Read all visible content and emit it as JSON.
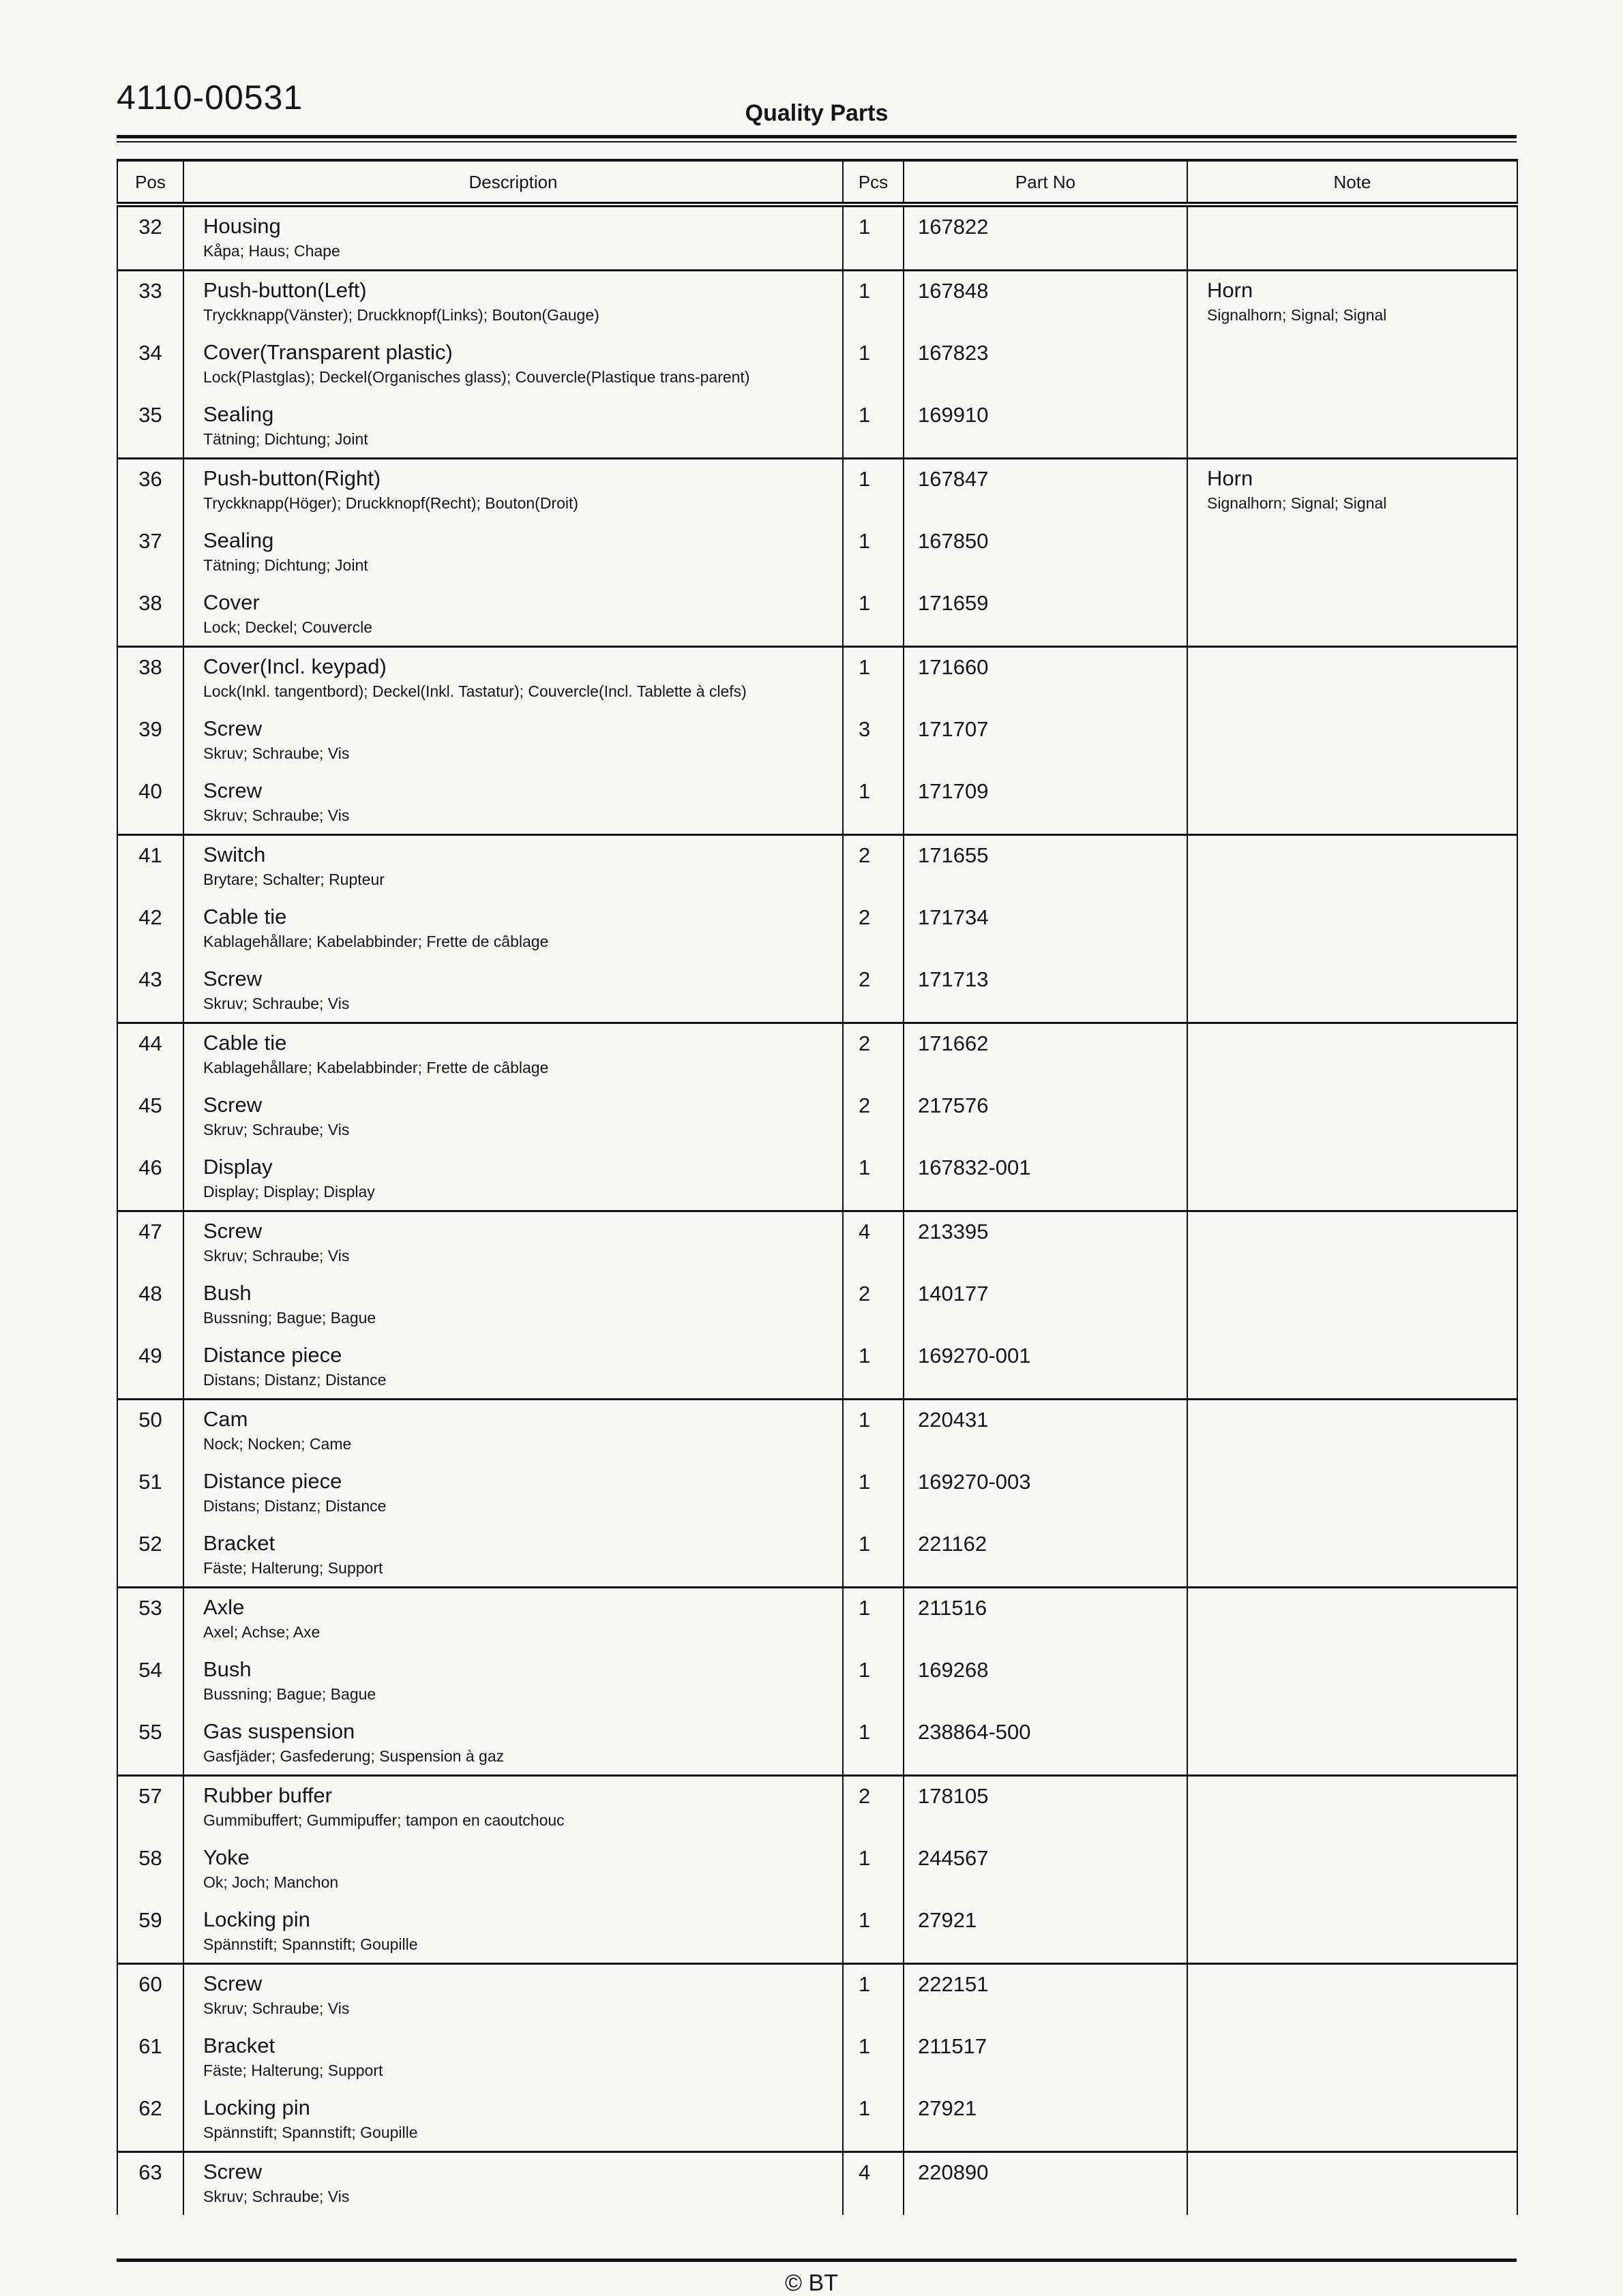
{
  "page": {
    "doc_number": "4110-00531",
    "title": "Quality Parts",
    "copyright": "© BT",
    "colors": {
      "ink": "#161616",
      "background": "#f7f7f5"
    }
  },
  "table": {
    "headers": {
      "pos": "Pos",
      "description": "Description",
      "pcs": "Pcs",
      "part_no": "Part No",
      "note": "Note"
    },
    "groups": [
      {
        "rows": [
          {
            "pos": "32",
            "desc": "Housing",
            "sub": "Kåpa; Haus; Chape",
            "pcs": "1",
            "part_no": "167822",
            "note": "",
            "note_sub": ""
          }
        ]
      },
      {
        "rows": [
          {
            "pos": "33",
            "desc": "Push-button(Left)",
            "sub": "Tryckknapp(Vänster); Druckknopf(Links); Bouton(Gauge)",
            "pcs": "1",
            "part_no": "167848",
            "note": "Horn",
            "note_sub": "Signalhorn; Signal; Signal"
          },
          {
            "pos": "34",
            "desc": "Cover(Transparent plastic)",
            "sub": "Lock(Plastglas); Deckel(Organisches glass); Couvercle(Plastique trans-parent)",
            "pcs": "1",
            "part_no": "167823",
            "note": "",
            "note_sub": ""
          },
          {
            "pos": "35",
            "desc": "Sealing",
            "sub": "Tätning; Dichtung; Joint",
            "pcs": "1",
            "part_no": "169910",
            "note": "",
            "note_sub": ""
          }
        ]
      },
      {
        "rows": [
          {
            "pos": "36",
            "desc": "Push-button(Right)",
            "sub": "Tryckknapp(Höger); Druckknopf(Recht); Bouton(Droit)",
            "pcs": "1",
            "part_no": "167847",
            "note": "Horn",
            "note_sub": "Signalhorn; Signal; Signal"
          },
          {
            "pos": "37",
            "desc": "Sealing",
            "sub": "Tätning; Dichtung; Joint",
            "pcs": "1",
            "part_no": "167850",
            "note": "",
            "note_sub": ""
          },
          {
            "pos": "38",
            "desc": "Cover",
            "sub": "Lock; Deckel; Couvercle",
            "pcs": "1",
            "part_no": "171659",
            "note": "",
            "note_sub": ""
          }
        ]
      },
      {
        "rows": [
          {
            "pos": "38",
            "desc": "Cover(Incl. keypad)",
            "sub": "Lock(Inkl. tangentbord); Deckel(Inkl. Tastatur); Couvercle(Incl. Tablette à clefs)",
            "pcs": "1",
            "part_no": "171660",
            "note": "",
            "note_sub": ""
          },
          {
            "pos": "39",
            "desc": "Screw",
            "sub": "Skruv; Schraube; Vis",
            "pcs": "3",
            "part_no": "171707",
            "note": "",
            "note_sub": ""
          },
          {
            "pos": "40",
            "desc": "Screw",
            "sub": "Skruv; Schraube; Vis",
            "pcs": "1",
            "part_no": "171709",
            "note": "",
            "note_sub": ""
          }
        ]
      },
      {
        "rows": [
          {
            "pos": "41",
            "desc": "Switch",
            "sub": "Brytare; Schalter; Rupteur",
            "pcs": "2",
            "part_no": "171655",
            "note": "",
            "note_sub": ""
          },
          {
            "pos": "42",
            "desc": "Cable tie",
            "sub": "Kablagehållare; Kabelabbinder; Frette de câblage",
            "pcs": "2",
            "part_no": "171734",
            "note": "",
            "note_sub": ""
          },
          {
            "pos": "43",
            "desc": "Screw",
            "sub": "Skruv; Schraube; Vis",
            "pcs": "2",
            "part_no": "171713",
            "note": "",
            "note_sub": ""
          }
        ]
      },
      {
        "rows": [
          {
            "pos": "44",
            "desc": "Cable tie",
            "sub": "Kablagehållare; Kabelabbinder; Frette de câblage",
            "pcs": "2",
            "part_no": "171662",
            "note": "",
            "note_sub": ""
          },
          {
            "pos": "45",
            "desc": "Screw",
            "sub": "Skruv; Schraube; Vis",
            "pcs": "2",
            "part_no": "217576",
            "note": "",
            "note_sub": ""
          },
          {
            "pos": "46",
            "desc": "Display",
            "sub": "Display; Display; Display",
            "pcs": "1",
            "part_no": "167832-001",
            "note": "",
            "note_sub": ""
          }
        ]
      },
      {
        "rows": [
          {
            "pos": "47",
            "desc": "Screw",
            "sub": "Skruv; Schraube; Vis",
            "pcs": "4",
            "part_no": "213395",
            "note": "",
            "note_sub": ""
          },
          {
            "pos": "48",
            "desc": "Bush",
            "sub": "Bussning; Bague; Bague",
            "pcs": "2",
            "part_no": "140177",
            "note": "",
            "note_sub": ""
          },
          {
            "pos": "49",
            "desc": "Distance piece",
            "sub": "Distans; Distanz; Distance",
            "pcs": "1",
            "part_no": "169270-001",
            "note": "",
            "note_sub": ""
          }
        ]
      },
      {
        "rows": [
          {
            "pos": "50",
            "desc": "Cam",
            "sub": "Nock; Nocken; Came",
            "pcs": "1",
            "part_no": "220431",
            "note": "",
            "note_sub": ""
          },
          {
            "pos": "51",
            "desc": "Distance piece",
            "sub": "Distans; Distanz; Distance",
            "pcs": "1",
            "part_no": "169270-003",
            "note": "",
            "note_sub": ""
          },
          {
            "pos": "52",
            "desc": "Bracket",
            "sub": "Fäste; Halterung; Support",
            "pcs": "1",
            "part_no": "221162",
            "note": "",
            "note_sub": ""
          }
        ]
      },
      {
        "rows": [
          {
            "pos": "53",
            "desc": "Axle",
            "sub": "Axel; Achse; Axe",
            "pcs": "1",
            "part_no": "211516",
            "note": "",
            "note_sub": ""
          },
          {
            "pos": "54",
            "desc": "Bush",
            "sub": "Bussning; Bague; Bague",
            "pcs": "1",
            "part_no": "169268",
            "note": "",
            "note_sub": ""
          },
          {
            "pos": "55",
            "desc": "Gas suspension",
            "sub": "Gasfjäder; Gasfederung; Suspension à gaz",
            "pcs": "1",
            "part_no": "238864-500",
            "note": "",
            "note_sub": ""
          }
        ]
      },
      {
        "rows": [
          {
            "pos": "57",
            "desc": "Rubber buffer",
            "sub": "Gummibuffert; Gummipuffer; tampon en caoutchouc",
            "pcs": "2",
            "part_no": "178105",
            "note": "",
            "note_sub": ""
          },
          {
            "pos": "58",
            "desc": "Yoke",
            "sub": "Ok; Joch; Manchon",
            "pcs": "1",
            "part_no": "244567",
            "note": "",
            "note_sub": ""
          },
          {
            "pos": "59",
            "desc": "Locking pin",
            "sub": "Spännstift; Spannstift; Goupille",
            "pcs": "1",
            "part_no": "27921",
            "note": "",
            "note_sub": ""
          }
        ]
      },
      {
        "rows": [
          {
            "pos": "60",
            "desc": "Screw",
            "sub": "Skruv; Schraube; Vis",
            "pcs": "1",
            "part_no": "222151",
            "note": "",
            "note_sub": ""
          },
          {
            "pos": "61",
            "desc": "Bracket",
            "sub": "Fäste; Halterung; Support",
            "pcs": "1",
            "part_no": "211517",
            "note": "",
            "note_sub": ""
          },
          {
            "pos": "62",
            "desc": "Locking pin",
            "sub": "Spännstift; Spannstift; Goupille",
            "pcs": "1",
            "part_no": "27921",
            "note": "",
            "note_sub": ""
          }
        ]
      },
      {
        "rows": [
          {
            "pos": "63",
            "desc": "Screw",
            "sub": "Skruv; Schraube; Vis",
            "pcs": "4",
            "part_no": "220890",
            "note": "",
            "note_sub": ""
          }
        ]
      }
    ]
  }
}
